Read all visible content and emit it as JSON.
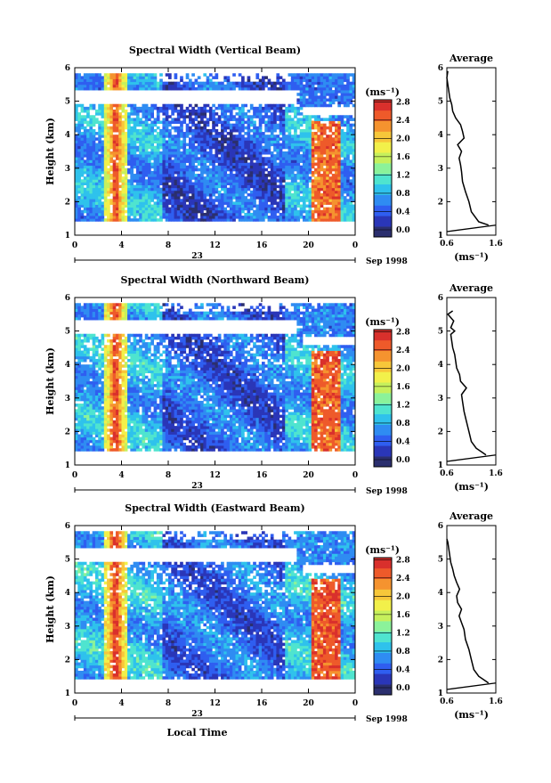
{
  "figure": {
    "date_label": "Sep 1998",
    "day_label": "23",
    "xlabel": "Local Time",
    "avg_xlabel": "(ms⁻¹)",
    "cbar_unit": "(ms⁻¹)",
    "colors": {
      "white_gap": "#ffffff",
      "colormap": [
        "#2b2f6e",
        "#2a36b8",
        "#2f5ef0",
        "#2f8cf2",
        "#2fc2ec",
        "#4fe4cf",
        "#8bf29a",
        "#c6f05c",
        "#f2f04a",
        "#f7c73a",
        "#f5932f",
        "#ee5a2a",
        "#d9302c"
      ]
    }
  },
  "chart_data": [
    {
      "type": "heatmap",
      "title": "Spectral Width (Vertical Beam)",
      "xlabel": "",
      "ylabel": "Height (km)",
      "xlim": [
        0,
        24
      ],
      "ylim": [
        1,
        6
      ],
      "x_ticks": [
        "0",
        "4",
        "8",
        "12",
        "16",
        "20",
        "0"
      ],
      "y_ticks": [
        "1",
        "2",
        "3",
        "4",
        "5",
        "6"
      ],
      "colorbar": {
        "ticks": [
          "0.0",
          "0.4",
          "0.8",
          "1.2",
          "1.6",
          "2.0",
          "2.4",
          "2.8"
        ],
        "range": [
          0,
          3.0
        ]
      },
      "profile": {
        "title": "Average",
        "xlim": [
          0.6,
          1.6
        ],
        "x_ticks": [
          "0.6",
          "1.6"
        ],
        "ylim": [
          1,
          6
        ],
        "y_ticks": [
          "1",
          "2",
          "3",
          "4",
          "5",
          "6"
        ],
        "heights": [
          1.3,
          1.4,
          1.5,
          1.7,
          2.0,
          2.3,
          2.6,
          2.9,
          3.1,
          3.3,
          3.5,
          3.7,
          3.9,
          4.1,
          4.3,
          4.5,
          4.7,
          4.9,
          5.1,
          5.3,
          5.5,
          5.7,
          5.9
        ],
        "values": [
          1.45,
          1.25,
          1.2,
          1.1,
          1.05,
          0.98,
          0.92,
          0.9,
          0.88,
          0.85,
          0.9,
          0.82,
          0.95,
          0.92,
          0.88,
          0.78,
          0.72,
          0.7,
          0.66,
          0.64,
          0.62,
          0.6,
          0.62
        ]
      }
    },
    {
      "type": "heatmap",
      "title": "Spectral Width (Northward Beam)",
      "xlabel": "",
      "ylabel": "Height (km)",
      "xlim": [
        0,
        24
      ],
      "ylim": [
        1,
        6
      ],
      "x_ticks": [
        "0",
        "4",
        "8",
        "12",
        "16",
        "20",
        "0"
      ],
      "y_ticks": [
        "1",
        "2",
        "3",
        "4",
        "5",
        "6"
      ],
      "colorbar": {
        "ticks": [
          "0.0",
          "0.4",
          "0.8",
          "1.2",
          "1.6",
          "2.0",
          "2.4",
          "2.8"
        ],
        "range": [
          0,
          3.0
        ]
      },
      "profile": {
        "title": "Average",
        "xlim": [
          0.6,
          1.6
        ],
        "x_ticks": [
          "0.6",
          "1.6"
        ],
        "ylim": [
          1,
          6
        ],
        "y_ticks": [
          "1",
          "2",
          "3",
          "4",
          "5",
          "6"
        ],
        "heights": [
          1.3,
          1.5,
          1.7,
          2.0,
          2.3,
          2.6,
          2.9,
          3.1,
          3.3,
          3.5,
          3.7,
          3.9,
          4.1,
          4.3,
          4.5,
          4.7,
          4.9,
          5.0,
          5.1,
          5.3,
          5.5,
          5.6
        ],
        "values": [
          1.4,
          1.2,
          1.1,
          1.05,
          1.0,
          0.95,
          0.92,
          0.9,
          1.0,
          0.88,
          0.86,
          0.8,
          0.78,
          0.76,
          0.72,
          0.7,
          0.68,
          0.76,
          0.68,
          0.74,
          0.62,
          0.72
        ]
      }
    },
    {
      "type": "heatmap",
      "title": "Spectral Width (Eastward Beam)",
      "xlabel": "Local Time",
      "ylabel": "Height (km)",
      "xlim": [
        0,
        24
      ],
      "ylim": [
        1,
        6
      ],
      "x_ticks": [
        "0",
        "4",
        "8",
        "12",
        "16",
        "20",
        "0"
      ],
      "y_ticks": [
        "1",
        "2",
        "3",
        "4",
        "5",
        "6"
      ],
      "colorbar": {
        "ticks": [
          "0.0",
          "0.4",
          "0.8",
          "1.2",
          "1.6",
          "2.0",
          "2.4",
          "2.8"
        ],
        "range": [
          0,
          3.0
        ]
      },
      "profile": {
        "title": "Average",
        "xlim": [
          0.6,
          1.6
        ],
        "x_ticks": [
          "0.6",
          "1.6"
        ],
        "ylim": [
          1,
          6
        ],
        "y_ticks": [
          "1",
          "2",
          "3",
          "4",
          "5",
          "6"
        ],
        "heights": [
          1.3,
          1.5,
          1.7,
          2.0,
          2.3,
          2.6,
          2.9,
          3.1,
          3.3,
          3.5,
          3.7,
          3.9,
          4.1,
          4.3,
          4.5,
          4.7,
          4.9,
          5.1,
          5.3,
          5.5,
          5.6
        ],
        "values": [
          1.45,
          1.25,
          1.15,
          1.1,
          1.05,
          0.98,
          0.95,
          0.9,
          0.85,
          0.9,
          0.82,
          0.8,
          0.86,
          0.8,
          0.75,
          0.72,
          0.68,
          0.66,
          0.64,
          0.62,
          0.6
        ]
      }
    }
  ]
}
